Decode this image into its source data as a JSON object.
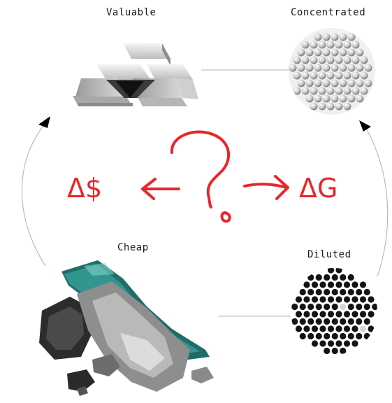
{
  "labels": {
    "valuable": "Valuable",
    "concentrated": "Concentrated",
    "cheap": "Cheap",
    "diluted": "Diluted"
  },
  "center": {
    "left_symbol": "Δ$",
    "right_symbol": "ΔG"
  },
  "images": {
    "top_left": "gold-bars-icon",
    "top_right": "concentrated-spheres-icon",
    "bottom_left": "ore-rocks-icon",
    "bottom_right": "diluted-dots-icon"
  },
  "colors": {
    "accent_red": "#e8262b",
    "ore_teal": "#2e8f88",
    "cycle_line": "#b0b0b0"
  }
}
